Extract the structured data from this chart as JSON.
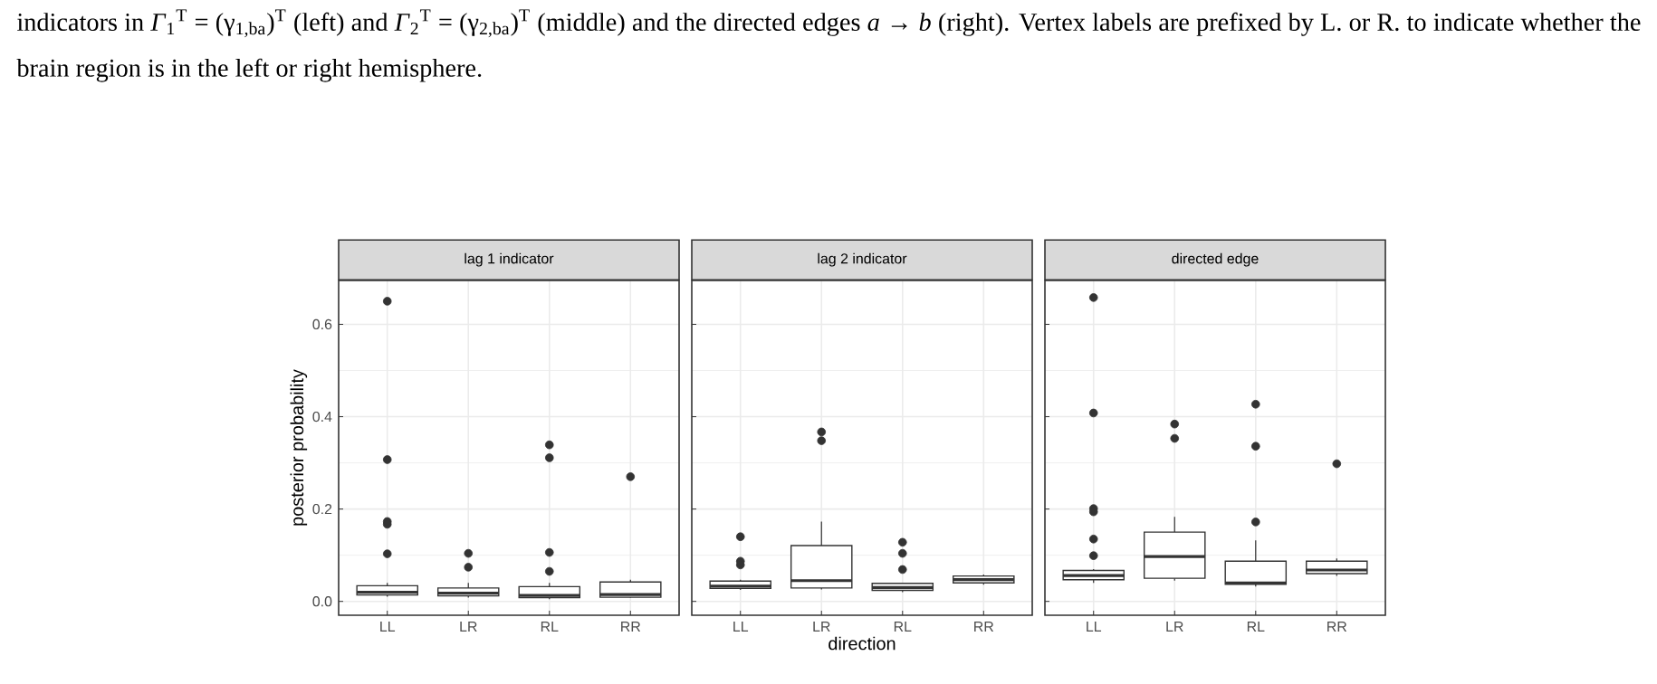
{
  "chart_data": [
    {
      "type": "box",
      "title": "lag 1 indicator",
      "ylabel": "posterior probability",
      "categories": [
        "LL",
        "LR",
        "RL",
        "RR"
      ],
      "ylim": [
        -0.03,
        0.695
      ],
      "yticks": [
        {
          "value": 0,
          "label": "0.0"
        },
        {
          "value": 0.2,
          "label": "0.2"
        },
        {
          "value": 0.4,
          "label": "0.4"
        },
        {
          "value": 0.6,
          "label": "0.6"
        }
      ],
      "grid": true,
      "annotations": [
        "indicators in *Γ*$_{1}$$^{T}$ = (γ$_{1,ba}$)$^{T}$ (left) and *Γ*$_{2}$$^{T}$ = (γ$_{2,ba}$)$^{T}$ (middle) and the directed edges *a* → *b* (right). Vertex labels are prefixed by L. or R. to indicate whether the brain region is in the left or right hemisphere."
      ],
      "boxes": [
        {
          "low": 0.01,
          "q1": 0.014,
          "median": 0.02,
          "q3": 0.034,
          "high": 0.04,
          "outliers": [
            0.65,
            0.307,
            0.173,
            0.167,
            0.103
          ]
        },
        {
          "low": 0.008,
          "q1": 0.012,
          "median": 0.018,
          "q3": 0.029,
          "high": 0.04,
          "outliers": [
            0.104,
            0.074
          ]
        },
        {
          "low": 0.005,
          "q1": 0.008,
          "median": 0.013,
          "q3": 0.032,
          "high": 0.04,
          "outliers": [
            0.339,
            0.311,
            0.106,
            0.065
          ]
        },
        {
          "low": 0.008,
          "q1": 0.009,
          "median": 0.015,
          "q3": 0.042,
          "high": 0.047,
          "outliers": [
            0.27
          ]
        }
      ]
    },
    {
      "type": "box",
      "title": "lag 2 indicator",
      "xlabel": "direction",
      "categories": [
        "LL",
        "LR",
        "RL",
        "RR"
      ],
      "ylim": [
        -0.03,
        0.695
      ],
      "yticks": [
        0,
        0.2,
        0.4,
        0.6
      ],
      "grid": true,
      "tick_labels": "x",
      "boxes": [
        {
          "low": 0.025,
          "q1": 0.028,
          "median": 0.033,
          "q3": 0.044,
          "high": 0.047,
          "outliers": [
            0.14,
            0.087,
            0.079
          ]
        },
        {
          "low": 0.026,
          "q1": 0.029,
          "median": 0.045,
          "q3": 0.121,
          "high": 0.173,
          "outliers": [
            0.367,
            0.348
          ]
        },
        {
          "low": 0.02,
          "q1": 0.024,
          "median": 0.03,
          "q3": 0.039,
          "high": 0.04,
          "outliers": [
            0.128,
            0.104,
            0.069
          ]
        },
        {
          "low": 0.036,
          "q1": 0.04,
          "median": 0.047,
          "q3": 0.055,
          "high": 0.058
        }
      ]
    },
    {
      "type": "box",
      "title": "directed edge",
      "categories": [
        "LL",
        "LR",
        "RL",
        "RR"
      ],
      "ylim": [
        -0.03,
        0.695
      ],
      "yticks": [
        0,
        0.2,
        0.4,
        0.6
      ],
      "grid": true,
      "tick_labels": "x",
      "boxes": [
        {
          "low": 0.04,
          "q1": 0.047,
          "median": 0.056,
          "q3": 0.067,
          "high": 0.07,
          "outliers": [
            0.658,
            0.408,
            0.201,
            0.194,
            0.135,
            0.099
          ]
        },
        {
          "low": 0.045,
          "q1": 0.05,
          "median": 0.097,
          "q3": 0.15,
          "high": 0.183,
          "outliers": [
            0.384,
            0.353
          ]
        },
        {
          "low": 0.032,
          "q1": 0.037,
          "median": 0.04,
          "q3": 0.087,
          "high": 0.132,
          "outliers": [
            0.427,
            0.336,
            0.172
          ]
        },
        {
          "low": 0.055,
          "q1": 0.06,
          "median": 0.068,
          "q3": 0.087,
          "high": 0.093,
          "outliers": [
            0.298
          ]
        }
      ]
    }
  ]
}
